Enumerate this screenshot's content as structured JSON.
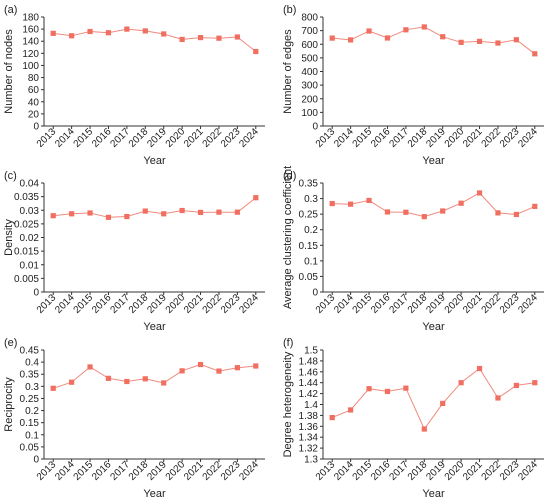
{
  "chart_data": [
    {
      "type": "line",
      "panel": "(a)",
      "xlabel": "Year",
      "ylabel": "Number of nodes",
      "categories": [
        "2013",
        "2014",
        "2015",
        "2016",
        "2017",
        "2018",
        "2019",
        "2020",
        "2021",
        "2022",
        "2023",
        "2024"
      ],
      "series": [
        {
          "values": [
            153,
            149,
            156,
            154,
            160,
            157,
            152,
            143,
            146,
            145,
            147,
            123
          ]
        }
      ],
      "ylim": [
        0,
        180
      ],
      "yticks": [
        "0",
        "20",
        "40",
        "60",
        "80",
        "100",
        "120",
        "140",
        "160",
        "180"
      ],
      "ytick_values": [
        0,
        20,
        40,
        60,
        80,
        100,
        120,
        140,
        160,
        180
      ],
      "color": "#f06f60",
      "grid": false
    },
    {
      "type": "line",
      "panel": "(b)",
      "xlabel": "Year",
      "ylabel": "Number of edges",
      "categories": [
        "2013",
        "2014",
        "2015",
        "2016",
        "2017",
        "2018",
        "2019",
        "2020",
        "2021",
        "2022",
        "2023",
        "2024"
      ],
      "series": [
        {
          "values": [
            645,
            632,
            697,
            646,
            706,
            727,
            655,
            614,
            621,
            609,
            633,
            530
          ]
        }
      ],
      "ylim": [
        0,
        800
      ],
      "yticks": [
        "0",
        "100",
        "200",
        "300",
        "400",
        "500",
        "600",
        "700",
        "800"
      ],
      "ytick_values": [
        0,
        100,
        200,
        300,
        400,
        500,
        600,
        700,
        800
      ],
      "color": "#f06f60",
      "grid": false
    },
    {
      "type": "line",
      "panel": "(c)",
      "xlabel": "Year",
      "ylabel": "Density",
      "categories": [
        "2013",
        "2014",
        "2015",
        "2016",
        "2017",
        "2018",
        "2019",
        "2020",
        "2021",
        "2022",
        "2023",
        "2024"
      ],
      "series": [
        {
          "values": [
            0.028,
            0.0287,
            0.029,
            0.0274,
            0.0277,
            0.0297,
            0.0287,
            0.0299,
            0.0292,
            0.0293,
            0.0293,
            0.0346
          ]
        }
      ],
      "ylim": [
        0,
        0.04
      ],
      "yticks": [
        "0",
        "0.005",
        "0.01",
        "0.015",
        "0.02",
        "0.025",
        "0.03",
        "0.035",
        "0.04"
      ],
      "ytick_values": [
        0,
        0.005,
        0.01,
        0.015,
        0.02,
        0.025,
        0.03,
        0.035,
        0.04
      ],
      "color": "#f06f60",
      "grid": false
    },
    {
      "type": "line",
      "panel": "(d)",
      "xlabel": "Year",
      "ylabel": "Average clustering coefficient",
      "categories": [
        "2013",
        "2014",
        "2015",
        "2016",
        "2017",
        "2018",
        "2019",
        "2020",
        "2021",
        "2022",
        "2023",
        "2024"
      ],
      "series": [
        {
          "values": [
            0.284,
            0.282,
            0.294,
            0.257,
            0.256,
            0.242,
            0.26,
            0.285,
            0.318,
            0.254,
            0.249,
            0.275
          ]
        }
      ],
      "ylim": [
        0,
        0.35
      ],
      "yticks": [
        "0",
        "0.05",
        "0.1",
        "0.15",
        "0.2",
        "0.25",
        "0.3",
        "0.35"
      ],
      "ytick_values": [
        0,
        0.05,
        0.1,
        0.15,
        0.2,
        0.25,
        0.3,
        0.35
      ],
      "color": "#f06f60",
      "grid": false
    },
    {
      "type": "line",
      "panel": "(e)",
      "xlabel": "Year",
      "ylabel": "Reciprocity",
      "categories": [
        "2013",
        "2014",
        "2015",
        "2016",
        "2017",
        "2018",
        "2019",
        "2020",
        "2021",
        "2022",
        "2023",
        "2024"
      ],
      "series": [
        {
          "values": [
            0.292,
            0.317,
            0.38,
            0.333,
            0.32,
            0.331,
            0.314,
            0.364,
            0.39,
            0.363,
            0.377,
            0.384
          ]
        }
      ],
      "ylim": [
        0,
        0.45
      ],
      "yticks": [
        "0",
        "0.05",
        "0.1",
        "0.15",
        "0.2",
        "0.25",
        "0.3",
        "0.35",
        "0.4",
        "0.45"
      ],
      "ytick_values": [
        0,
        0.05,
        0.1,
        0.15,
        0.2,
        0.25,
        0.3,
        0.35,
        0.4,
        0.45
      ],
      "color": "#f06f60",
      "grid": false
    },
    {
      "type": "line",
      "panel": "(f)",
      "xlabel": "Year",
      "ylabel": "Degree heterogeneity",
      "categories": [
        "2013",
        "2014",
        "2015",
        "2016",
        "2017",
        "2018",
        "2019",
        "2020",
        "2021",
        "2022",
        "2023",
        "2024"
      ],
      "series": [
        {
          "values": [
            1.376,
            1.39,
            1.429,
            1.424,
            1.43,
            1.355,
            1.402,
            1.44,
            1.466,
            1.412,
            1.435,
            1.44
          ]
        }
      ],
      "ylim": [
        1.3,
        1.5
      ],
      "yticks": [
        "1.3",
        "1.32",
        "1.34",
        "1.36",
        "1.38",
        "1.4",
        "1.42",
        "1.44",
        "1.46",
        "1.48",
        "1.5"
      ],
      "ytick_values": [
        1.3,
        1.32,
        1.34,
        1.36,
        1.38,
        1.4,
        1.42,
        1.44,
        1.46,
        1.48,
        1.5
      ],
      "color": "#f06f60",
      "grid": false
    }
  ]
}
